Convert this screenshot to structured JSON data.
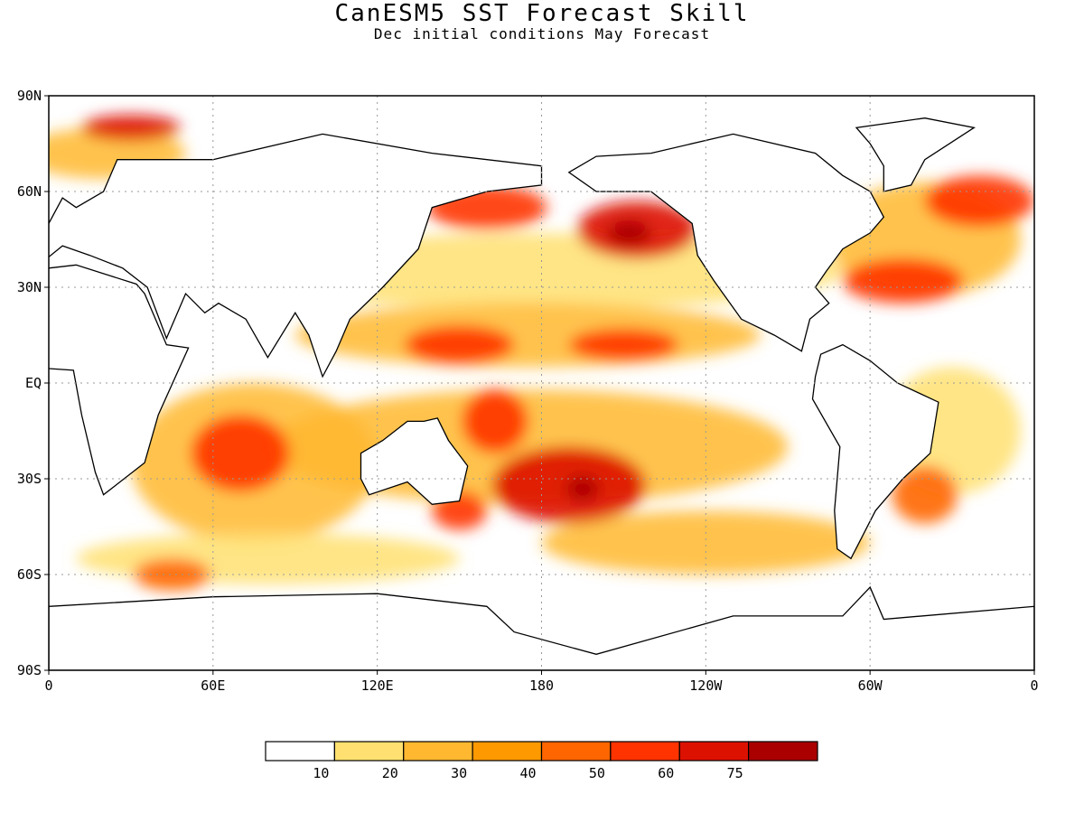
{
  "title": "CanESM5 SST Forecast Skill",
  "subtitle": "Dec initial conditions  May Forecast",
  "map": {
    "projection": "cylindrical equidistant",
    "lon_range": [
      0,
      360
    ],
    "lat_range": [
      -90,
      90
    ],
    "grid": true,
    "y_ticks": [
      {
        "lat": 90,
        "label": "90N"
      },
      {
        "lat": 60,
        "label": "60N"
      },
      {
        "lat": 30,
        "label": "30N"
      },
      {
        "lat": 0,
        "label": "EQ"
      },
      {
        "lat": -30,
        "label": "30S"
      },
      {
        "lat": -60,
        "label": "60S"
      },
      {
        "lat": -90,
        "label": "90S"
      }
    ],
    "x_ticks": [
      {
        "lon": 0,
        "label": "0"
      },
      {
        "lon": 60,
        "label": "60E"
      },
      {
        "lon": 120,
        "label": "120E"
      },
      {
        "lon": 180,
        "label": "180"
      },
      {
        "lon": 240,
        "label": "120W"
      },
      {
        "lon": 300,
        "label": "60W"
      },
      {
        "lon": 360,
        "label": "0"
      }
    ],
    "skill_blobs": [
      {
        "lon": 215,
        "lat": 48,
        "rx": 22,
        "ry": 9,
        "level": 7
      },
      {
        "lon": 212,
        "lat": 47,
        "rx": 8,
        "ry": 4,
        "level": 8
      },
      {
        "lon": 160,
        "lat": 55,
        "rx": 22,
        "ry": 7,
        "level": 6
      },
      {
        "lon": 150,
        "lat": 12,
        "rx": 20,
        "ry": 6,
        "level": 6
      },
      {
        "lon": 210,
        "lat": 12,
        "rx": 20,
        "ry": 5,
        "level": 6
      },
      {
        "lon": 190,
        "lat": -32,
        "rx": 28,
        "ry": 12,
        "level": 7
      },
      {
        "lon": 195,
        "lat": -33,
        "rx": 6,
        "ry": 4,
        "level": 8
      },
      {
        "lon": 163,
        "lat": -12,
        "rx": 12,
        "ry": 10,
        "level": 6
      },
      {
        "lon": 340,
        "lat": 57,
        "rx": 20,
        "ry": 8,
        "level": 6
      },
      {
        "lon": 312,
        "lat": 32,
        "rx": 22,
        "ry": 7,
        "level": 6
      },
      {
        "lon": 30,
        "lat": 80,
        "rx": 18,
        "ry": 4,
        "level": 7
      },
      {
        "lon": 70,
        "lat": -22,
        "rx": 18,
        "ry": 12,
        "level": 6
      },
      {
        "lon": 150,
        "lat": -40,
        "rx": 10,
        "ry": 6,
        "level": 6
      },
      {
        "lon": 320,
        "lat": -35,
        "rx": 12,
        "ry": 9,
        "level": 5
      },
      {
        "lon": 45,
        "lat": -60,
        "rx": 14,
        "ry": 5,
        "level": 5
      }
    ]
  },
  "colorbar": {
    "colors": [
      "#ffffff",
      "#ffe070",
      "#ffb830",
      "#ff9900",
      "#ff6600",
      "#ff3300",
      "#dd1100",
      "#aa0000"
    ],
    "labels": [
      "10",
      "20",
      "30",
      "40",
      "50",
      "60",
      "75"
    ]
  }
}
